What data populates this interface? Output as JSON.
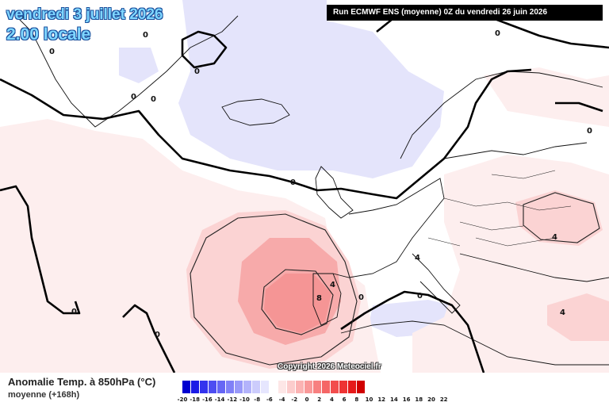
{
  "header": {
    "date_title": "vendredi 3 juillet 2026",
    "time_title": "2.00 locale",
    "run_info": "Run ECMWF ENS (moyenne) 0Z du vendredi 26 juin 2026"
  },
  "map": {
    "copyright": "Copyright 2026 Meteociel.fr",
    "contour_labels": [
      "0",
      "0",
      "0",
      "0",
      "0",
      "0",
      "0",
      "0",
      "0",
      "0",
      "0",
      "4",
      "4",
      "4",
      "8",
      "4",
      "0",
      "0"
    ]
  },
  "legend": {
    "title": "Anomalie Temp. à 850hPa (°C)",
    "subtitle": "moyenne   (+168h)",
    "ticks": [
      "-20",
      "-18",
      "-16",
      "-14",
      "-12",
      "-10",
      "-8",
      "-6",
      "-4",
      "-2",
      "0",
      "2",
      "4",
      "6",
      "8",
      "10",
      "12",
      "14",
      "16",
      "18",
      "20",
      "22"
    ],
    "colors": [
      "#0000d0",
      "#1a1ae6",
      "#3333ee",
      "#4d4df2",
      "#6666f5",
      "#8080f7",
      "#9999f9",
      "#b3b3fb",
      "#ccccfc",
      "#e6e6fe",
      "#ffffff",
      "#fde6e6",
      "#fccccc",
      "#fbb3b3",
      "#f99999",
      "#f78080",
      "#f56666",
      "#f24d4d",
      "#ee3333",
      "#e61a1a",
      "#d00000"
    ]
  }
}
